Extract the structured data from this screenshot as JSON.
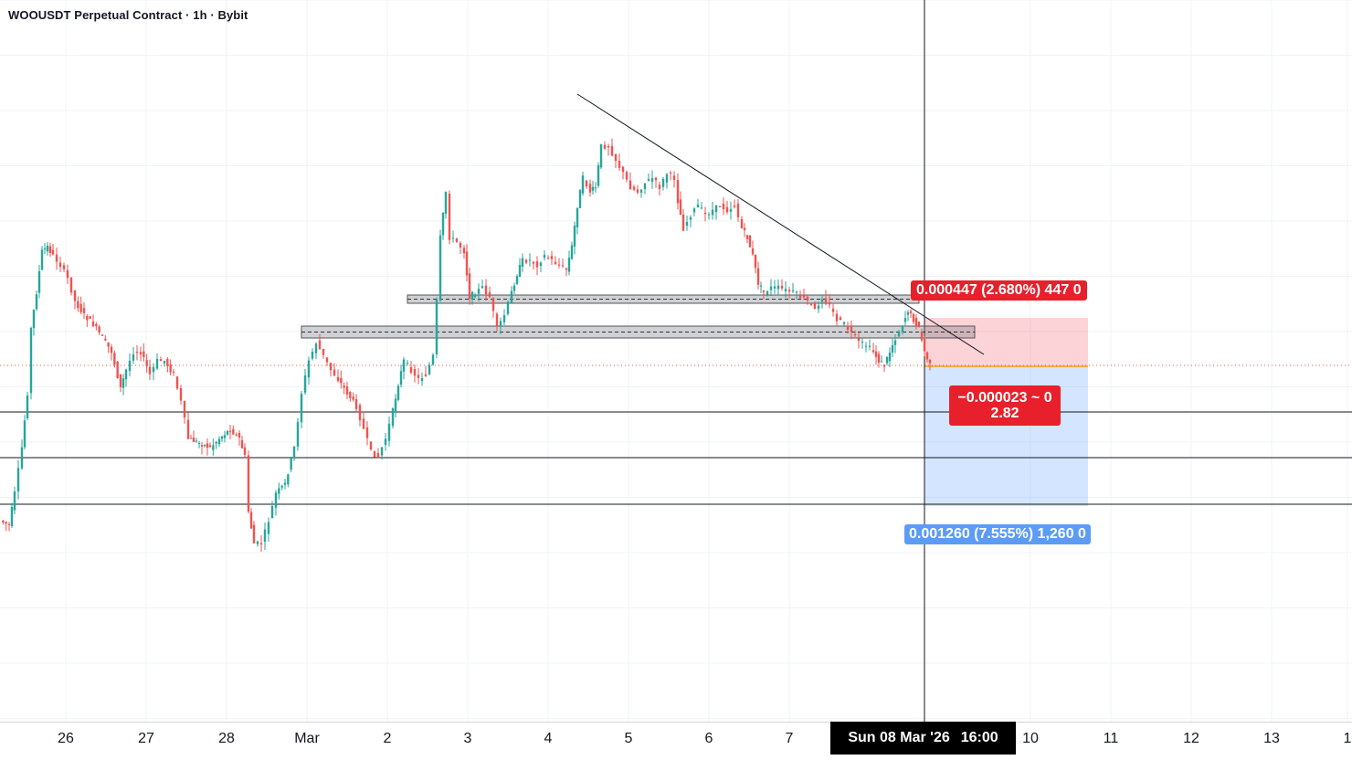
{
  "header": {
    "title": "WOOUSDT Perpetual Contract · 1h · Bybit"
  },
  "x_axis": {
    "ticks": [
      "26",
      "27",
      "28",
      "Mar",
      "2",
      "3",
      "4",
      "5",
      "6",
      "7",
      "10",
      "11",
      "12",
      "13",
      "1"
    ],
    "crosshair_date": "Sun 08 Mar '26",
    "crosshair_time": "16:00"
  },
  "position_tool": {
    "stop_label": "0.000447 (2.680%) 447 0",
    "center_line1": "−0.000023 ~ 0",
    "center_line2": "2.82",
    "target_label": "0.001260 (7.555%) 1,260 0"
  },
  "colors": {
    "up": "#26a69a",
    "down": "#ef5350",
    "stop_zone": "rgba(242,54,69,0.22)",
    "target_zone": "rgba(41,128,255,0.20)",
    "label_red": "#e8202b",
    "label_blue": "#5b9cf6"
  },
  "chart_data": {
    "type": "candlestick",
    "symbol": "WOOUSDT",
    "interval": "1h",
    "exchange": "Bybit",
    "x_categories": [
      "26",
      "27",
      "28",
      "Mar",
      "2",
      "3",
      "4",
      "5",
      "6",
      "7",
      "Sun 08 Mar '26",
      "10",
      "11",
      "12",
      "13"
    ],
    "series": [
      {
        "name": "price_path",
        "close_by_day": [
          0.0162,
          0.0167,
          0.0159,
          0.0167,
          0.0163,
          0.0173,
          0.0176,
          0.018,
          0.0176,
          0.017,
          0.0167
        ]
      }
    ],
    "position": {
      "side": "short",
      "stop_move": "0.000447 (2.680%)",
      "target_move": "0.001260 (7.555%)",
      "risk_reward": 2.82
    },
    "annotations": [
      "descending trendline",
      "two horizontal resistance zones",
      "three horizontal support lines"
    ]
  }
}
